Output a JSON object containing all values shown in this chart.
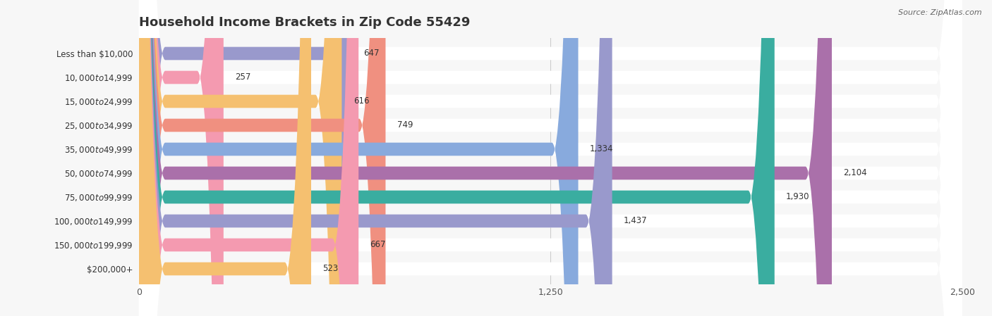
{
  "title": "Household Income Brackets in Zip Code 55429",
  "source": "Source: ZipAtlas.com",
  "categories": [
    "Less than $10,000",
    "$10,000 to $14,999",
    "$15,000 to $24,999",
    "$25,000 to $34,999",
    "$35,000 to $49,999",
    "$50,000 to $74,999",
    "$75,000 to $99,999",
    "$100,000 to $149,999",
    "$150,000 to $199,999",
    "$200,000+"
  ],
  "values": [
    647,
    257,
    616,
    749,
    1334,
    2104,
    1930,
    1437,
    667,
    523
  ],
  "bar_colors": [
    "#9999cc",
    "#f49ab0",
    "#f5c070",
    "#f09080",
    "#88aadd",
    "#aa70aa",
    "#3aada0",
    "#9999cc",
    "#f49ab0",
    "#f5c070"
  ],
  "xlim": [
    0,
    2500
  ],
  "xticks": [
    0,
    1250,
    2500
  ],
  "background_color": "#f7f7f7",
  "row_bg_color": "#e8e8e8",
  "title_fontsize": 13,
  "label_fontsize": 8.5,
  "value_fontsize": 8.5
}
